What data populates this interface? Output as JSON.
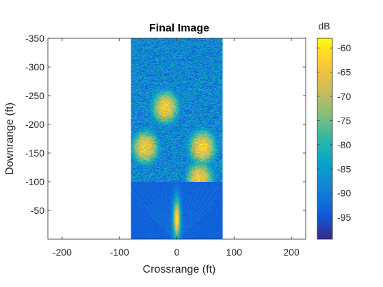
{
  "chart_data": {
    "type": "heatmap",
    "title": "Final Image",
    "xlabel": "Crossrange (ft)",
    "ylabel": "Downrange (ft)",
    "xlim": [
      -225,
      225
    ],
    "ylim": [
      -350,
      0
    ],
    "x_ticks": [
      -200,
      -100,
      0,
      100,
      200
    ],
    "x_tick_labels": [
      "-200",
      "-100",
      "0",
      "100",
      "200"
    ],
    "y_ticks": [
      -350,
      -300,
      -250,
      -200,
      -150,
      -100,
      -50
    ],
    "y_tick_labels": [
      "-350",
      "-300",
      "-250",
      "-200",
      "-150",
      "-100",
      "-50"
    ],
    "image_extent": {
      "x": [
        -80,
        80
      ],
      "y": [
        -350,
        0
      ]
    },
    "colorbar": {
      "label": "dB",
      "colormap": "parula",
      "range": [
        -99.5,
        -58
      ],
      "ticks": [
        -60,
        -65,
        -70,
        -75,
        -80,
        -85,
        -90,
        -95
      ],
      "tick_labels": [
        "-60",
        "-65",
        "-70",
        "-75",
        "-80",
        "-85",
        "-90",
        "-95"
      ],
      "colormap_stops": [
        "#352a87",
        "#0f5cdd",
        "#1481d6",
        "#06a4ca",
        "#2eb7a4",
        "#87bf77",
        "#d1bb59",
        "#fec832",
        "#f9fb0e"
      ]
    },
    "floor_db": -99,
    "features": [
      {
        "name": "mainlobe",
        "x": 0,
        "y": -40,
        "peak_db": -62
      },
      {
        "name": "bright-cluster-left",
        "x": -55,
        "y": -160,
        "peak_db": -64
      },
      {
        "name": "bright-cluster-upper",
        "x": -20,
        "y": -230,
        "peak_db": -64
      },
      {
        "name": "bright-cluster-right",
        "x": 45,
        "y": -160,
        "peak_db": -63
      },
      {
        "name": "bright-cluster-right-lower",
        "x": 40,
        "y": -105,
        "peak_db": -64
      }
    ]
  }
}
